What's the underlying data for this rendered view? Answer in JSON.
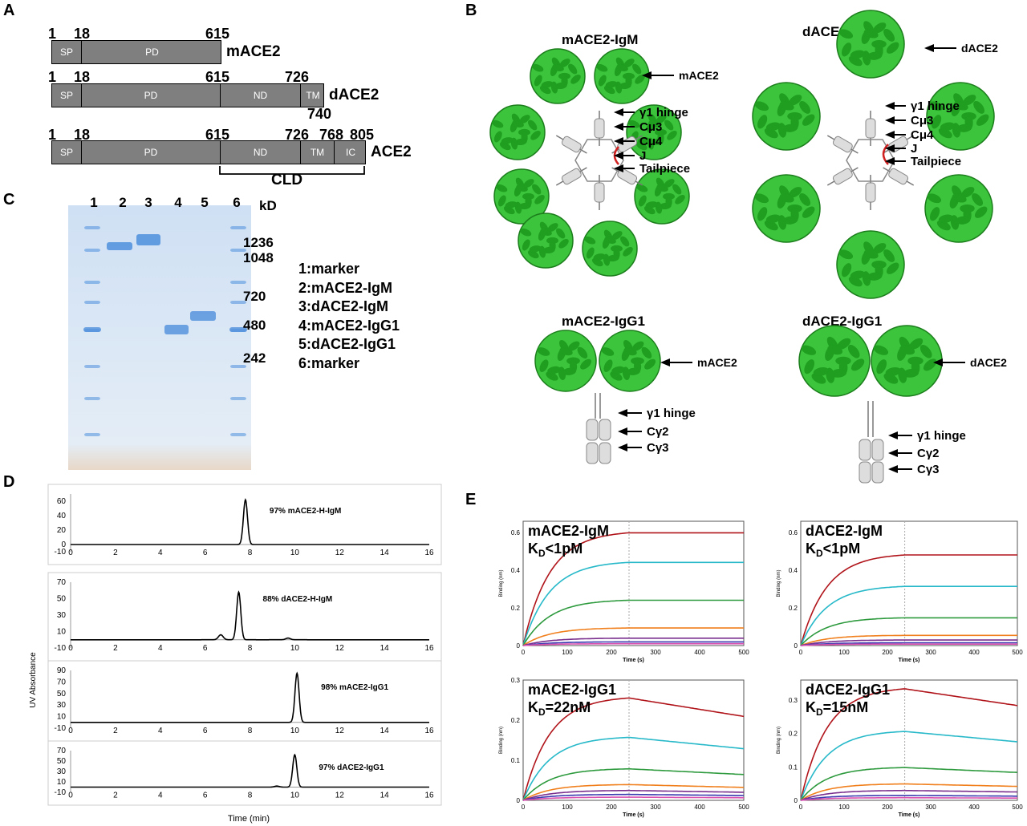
{
  "panels": {
    "a": "A",
    "b": "B",
    "c": "C",
    "d": "D",
    "e": "E"
  },
  "panelA": {
    "constructs": [
      {
        "name": "mACE2",
        "ticks": [
          "1",
          "18",
          "615"
        ],
        "segments": [
          "SP",
          "PD"
        ]
      },
      {
        "name": "dACE2",
        "ticks": [
          "1",
          "18",
          "615",
          "726"
        ],
        "segments": [
          "SP",
          "PD",
          "ND",
          "TM"
        ],
        "extra": "740"
      },
      {
        "name": "ACE2",
        "ticks": [
          "1",
          "18",
          "615",
          "726",
          "768",
          "805"
        ],
        "segments": [
          "SP",
          "PD",
          "ND",
          "TM",
          "IC"
        ]
      }
    ],
    "cld": "CLD"
  },
  "panelB": {
    "mIgM": {
      "title": "mACE2-IgM",
      "labels": [
        "mACE2",
        "γ1 hinge",
        "Cμ3",
        "Cμ4",
        "J",
        "Tailpiece"
      ]
    },
    "dIgM": {
      "title": "dACE2-IgM",
      "labels": [
        "dACE2",
        "γ1 hinge",
        "Cμ3",
        "Cμ4",
        "J",
        "Tailpiece"
      ]
    },
    "mIgG1": {
      "title": "mACE2-IgG1",
      "labels": [
        "mACE2",
        "γ1 hinge",
        "Cγ2",
        "Cγ3"
      ]
    },
    "dIgG1": {
      "title": "dACE2-IgG1",
      "labels": [
        "dACE2",
        "γ1 hinge",
        "Cγ2",
        "Cγ3"
      ]
    }
  },
  "panelC": {
    "lanes": [
      "1",
      "2",
      "3",
      "4",
      "5",
      "6"
    ],
    "unit": "kD",
    "markers": [
      "1236",
      "1048",
      "720",
      "480",
      "242"
    ],
    "legend": [
      "1:marker",
      "2:mACE2-IgM",
      "3:dACE2-IgM",
      "4:mACE2-IgG1",
      "5:dACE2-IgG1",
      "6:marker"
    ]
  },
  "panelD": {
    "ylabel": "UV Absorbance",
    "xlabel": "Time (min)",
    "xticks": [
      "0",
      "2",
      "4",
      "6",
      "8",
      "10",
      "12",
      "14",
      "16"
    ],
    "traces": [
      {
        "label": "97%   mACE2-H-IgM",
        "yticks": [
          "60",
          "40",
          "20",
          "0",
          "-10"
        ],
        "peak_min": 7.8,
        "peak_val": 62,
        "ymax": 70,
        "ymin": -10
      },
      {
        "label": "88%   dACE2-H-IgM",
        "yticks": [
          "70",
          "50",
          "30",
          "10",
          "-10"
        ],
        "peak_min": 7.5,
        "peak_val": 58,
        "ymax": 70,
        "ymin": -10
      },
      {
        "label": "98%   mACE2-IgG1",
        "yticks": [
          "90",
          "70",
          "50",
          "30",
          "10",
          "-10"
        ],
        "peak_min": 10.1,
        "peak_val": 85,
        "ymax": 90,
        "ymin": -10
      },
      {
        "label": "97%   dACE2-IgG1",
        "yticks": [
          "70",
          "50",
          "30",
          "10",
          "-10"
        ],
        "peak_min": 10.0,
        "peak_val": 62,
        "ymax": 70,
        "ymin": -10
      }
    ]
  },
  "panelE": {
    "xlabel": "Time (s)",
    "ylabel": "Binding (nm)",
    "xticks": [
      "0",
      "100",
      "200",
      "300",
      "400",
      "500"
    ],
    "plots": [
      {
        "title": "mACE2-IgM",
        "kd_pre": "K",
        "kd_sub": "D",
        "kd_val": "<1pM",
        "yticks": [
          "0",
          "0.2",
          "0.4",
          "0.6"
        ],
        "ymax": 0.66,
        "plateaus": [
          0.61,
          0.45,
          0.245,
          0.095,
          0.04,
          0.02,
          0.01
        ],
        "decay": 0
      },
      {
        "title": "dACE2-IgM",
        "kd_pre": "K",
        "kd_sub": "D",
        "kd_val": "<1pM",
        "yticks": [
          "0",
          "0.2",
          "0.4",
          "0.6"
        ],
        "ymax": 0.66,
        "plateaus": [
          0.49,
          0.32,
          0.15,
          0.055,
          0.03,
          0.015,
          0.008
        ],
        "decay": 0
      },
      {
        "title": "mACE2-IgG1",
        "kd_pre": "K",
        "kd_sub": "D",
        "kd_val": "=22nM",
        "yticks": [
          "0",
          "0.1",
          "0.2",
          "0.3"
        ],
        "ymax": 0.3,
        "plateaus": [
          0.26,
          0.16,
          0.08,
          0.04,
          0.025,
          0.015,
          0.008
        ],
        "decay": 0.18
      },
      {
        "title": "dACE2-IgG1",
        "kd_pre": "K",
        "kd_sub": "D",
        "kd_val": "=15nM",
        "yticks": [
          "0",
          "0.1",
          "0.2",
          "0.3"
        ],
        "ymax": 0.36,
        "plateaus": [
          0.34,
          0.21,
          0.1,
          0.05,
          0.03,
          0.015,
          0.008
        ],
        "decay": 0.15
      }
    ],
    "colors": [
      "#b0141a",
      "#27b9c9",
      "#2e9a3e",
      "#f07f1c",
      "#7a2f8e",
      "#3a3ab0",
      "#d94fb0"
    ]
  }
}
